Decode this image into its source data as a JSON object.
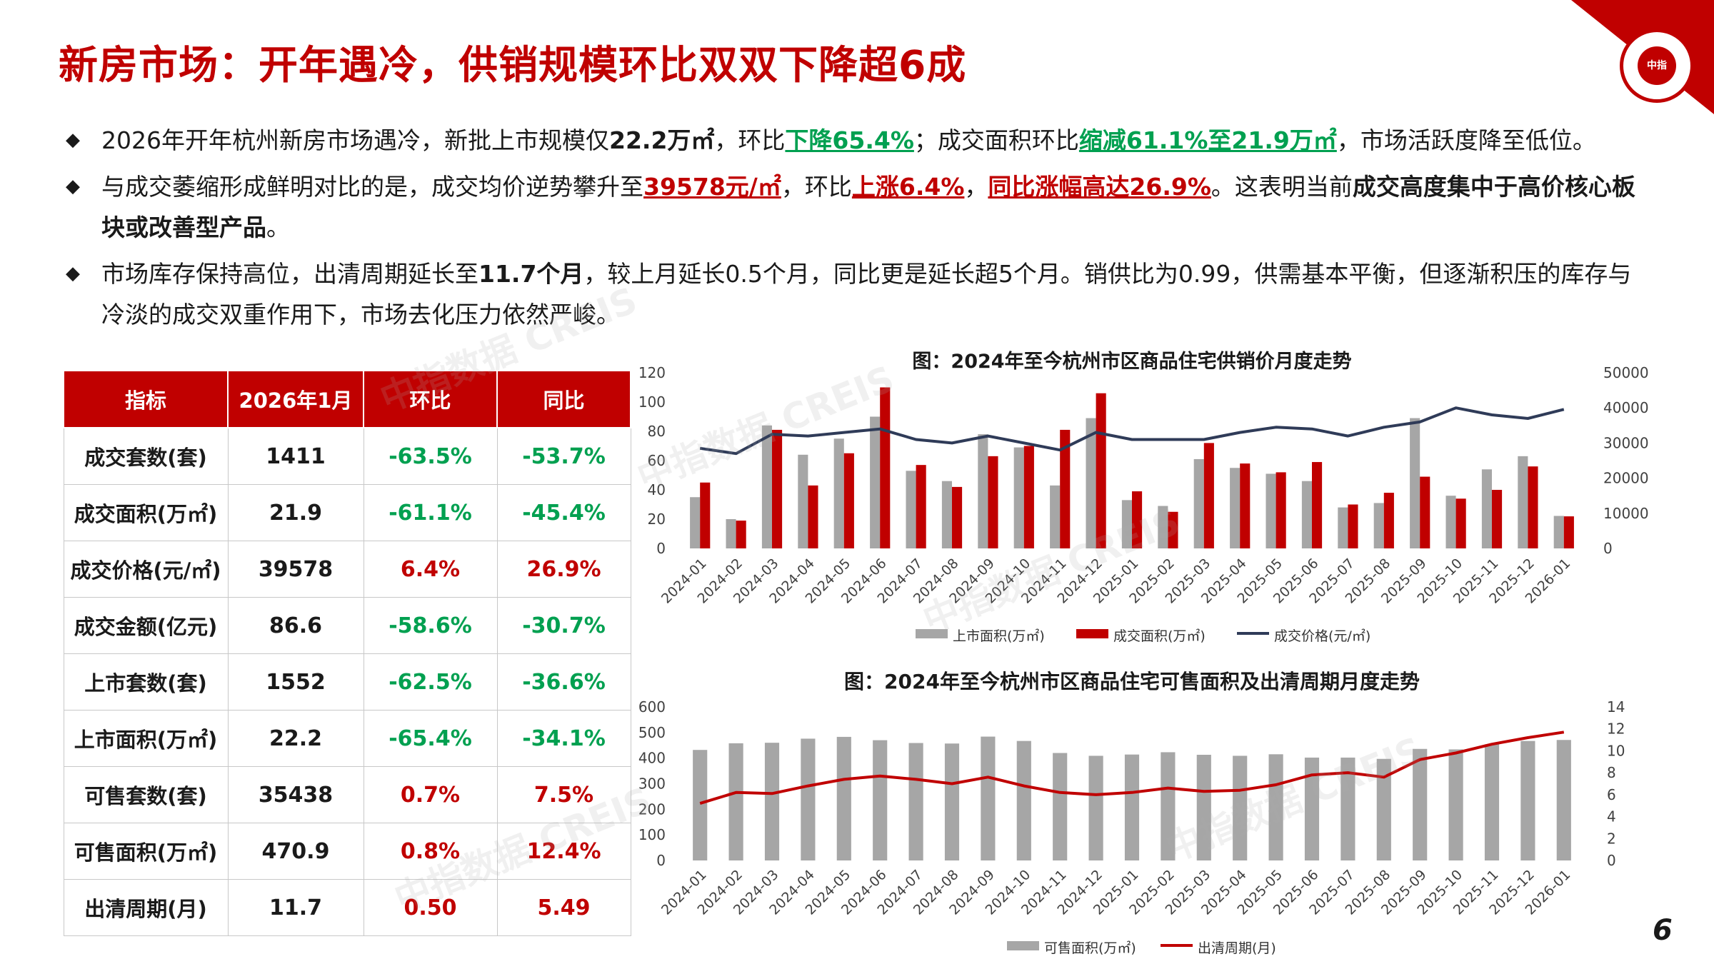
{
  "title": "新房市场：开年遇冷，供销规模环比双双下降超6成",
  "logo_text": "中指",
  "bullets": [
    [
      "2026年开年杭州新房市场遇冷，新批上市规模仅",
      "22.2万㎡",
      "，环比",
      "下降65.4%",
      "；成交面积环比",
      "缩减61.1%至21.9万㎡",
      "，市场活跃度降至低位。"
    ],
    [
      "与成交萎缩形成鲜明对比的是，成交均价逆势攀升至",
      "39578元/㎡",
      "，环比",
      "上涨6.4%",
      "，",
      "同比涨幅高达26.9%",
      "。这表明当前",
      "成交高度集中于高价核心板块或改善型产品",
      "。"
    ],
    [
      "市场库存保持高位，出清周期延长至",
      "11.7个月",
      "，较上月延长0.5个月，同比更是延长超5个月。销供比为0.99，供需基本平衡，但逐渐积压的库存与冷淡的成交双重作用下，市场去化压力依然严峻。"
    ]
  ],
  "table": {
    "headers": [
      "指标",
      "2026年1月",
      "环比",
      "同比"
    ],
    "rows": [
      [
        "成交套数(套)",
        "1411",
        "-63.5%",
        "-53.7%"
      ],
      [
        "成交面积(万㎡)",
        "21.9",
        "-61.1%",
        "-45.4%"
      ],
      [
        "成交价格(元/㎡)",
        "39578",
        "6.4%",
        "26.9%"
      ],
      [
        "成交金额(亿元)",
        "86.6",
        "-58.6%",
        "-30.7%"
      ],
      [
        "上市套数(套)",
        "1552",
        "-62.5%",
        "-36.6%"
      ],
      [
        "上市面积(万㎡)",
        "22.2",
        "-65.4%",
        "-34.1%"
      ],
      [
        "可售套数(套)",
        "35438",
        "0.7%",
        "7.5%"
      ],
      [
        "可售面积(万㎡)",
        "470.9",
        "0.8%",
        "12.4%"
      ],
      [
        "出清周期(月)",
        "11.7",
        "0.50",
        "5.49"
      ]
    ]
  },
  "chart_data": [
    {
      "type": "bar",
      "title": "图：2024年至今杭州市区商品住宅供销价月度走势",
      "categories": [
        "2024-01",
        "2024-02",
        "2024-03",
        "2024-04",
        "2024-05",
        "2024-06",
        "2024-07",
        "2024-08",
        "2024-09",
        "2024-10",
        "2024-11",
        "2024-12",
        "2025-01",
        "2025-02",
        "2025-03",
        "2025-04",
        "2025-05",
        "2025-06",
        "2025-07",
        "2025-08",
        "2025-09",
        "2025-10",
        "2025-11",
        "2025-12",
        "2026-01"
      ],
      "y_left": {
        "min": 0,
        "max": 120,
        "ticks": [
          0,
          20,
          40,
          60,
          80,
          100,
          120
        ]
      },
      "y_right": {
        "min": 0,
        "max": 50000,
        "ticks": [
          0,
          10000,
          20000,
          30000,
          40000,
          50000
        ]
      },
      "series": [
        {
          "name": "上市面积(万㎡)",
          "kind": "bar",
          "axis": "left",
          "color": "#a6a6a6",
          "values": [
            35,
            20,
            84,
            64,
            75,
            90,
            53,
            46,
            78,
            69,
            43,
            89,
            33,
            29,
            61,
            55,
            51,
            46,
            28,
            31,
            89,
            36,
            54,
            63,
            22.2
          ]
        },
        {
          "name": "成交面积(万㎡)",
          "kind": "bar",
          "axis": "left",
          "color": "#c00000",
          "values": [
            45,
            19,
            81,
            43,
            65,
            110,
            57,
            42,
            63,
            70,
            81,
            106,
            39,
            25,
            72,
            58,
            52,
            59,
            30,
            38,
            49,
            34,
            40,
            56,
            21.9
          ]
        },
        {
          "name": "成交价格(元/㎡)",
          "kind": "line",
          "axis": "right",
          "color": "#2f3b58",
          "values": [
            28500,
            27000,
            32500,
            32000,
            33000,
            34000,
            31000,
            30000,
            32000,
            30000,
            28000,
            33000,
            31000,
            31000,
            31000,
            33000,
            34500,
            34000,
            32000,
            34500,
            36000,
            40000,
            38000,
            37000,
            39578
          ]
        }
      ],
      "legend_position": "bottom"
    },
    {
      "type": "bar",
      "title": "图：2024年至今杭州市区商品住宅可售面积及出清周期月度走势",
      "categories": [
        "2024-01",
        "2024-02",
        "2024-03",
        "2024-04",
        "2024-05",
        "2024-06",
        "2024-07",
        "2024-08",
        "2024-09",
        "2024-10",
        "2024-11",
        "2024-12",
        "2025-01",
        "2025-02",
        "2025-03",
        "2025-04",
        "2025-05",
        "2025-06",
        "2025-07",
        "2025-08",
        "2025-09",
        "2025-10",
        "2025-11",
        "2025-12",
        "2026-01"
      ],
      "y_left": {
        "min": 0,
        "max": 600,
        "ticks": [
          0,
          100,
          200,
          300,
          400,
          500,
          600
        ]
      },
      "y_right": {
        "min": 0,
        "max": 14,
        "ticks": [
          0,
          2,
          4,
          6,
          8,
          10,
          12,
          14
        ]
      },
      "series": [
        {
          "name": "可售面积(万㎡)",
          "kind": "bar",
          "axis": "left",
          "color": "#a6a6a6",
          "values": [
            432,
            458,
            460,
            476,
            483,
            470,
            459,
            457,
            484,
            467,
            420,
            409,
            414,
            423,
            413,
            409,
            415,
            402,
            402,
            397,
            436,
            434,
            454,
            467,
            470.9
          ]
        },
        {
          "name": "出清周期(月)",
          "kind": "line",
          "axis": "right",
          "color": "#c00000",
          "values": [
            5.2,
            6.2,
            6.1,
            6.8,
            7.4,
            7.7,
            7.4,
            7.0,
            7.6,
            6.8,
            6.2,
            6.0,
            6.2,
            6.6,
            6.3,
            6.4,
            6.9,
            7.8,
            8.0,
            7.6,
            9.2,
            9.8,
            10.6,
            11.2,
            11.7
          ]
        }
      ],
      "legend_position": "bottom"
    }
  ],
  "page_number": "6",
  "watermark": "中指数据 CREIS"
}
